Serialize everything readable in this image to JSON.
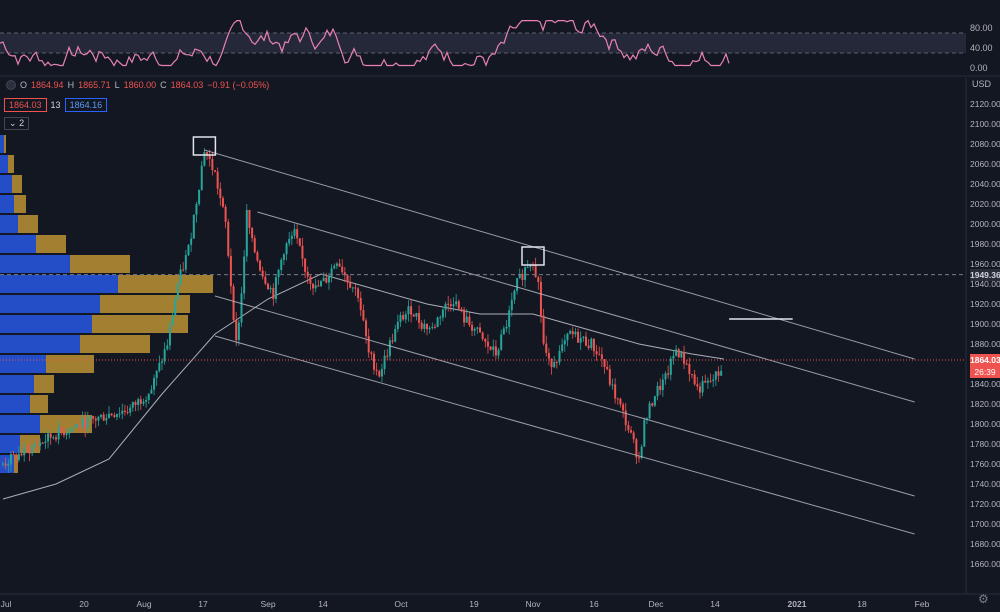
{
  "legend": {
    "open_label": "O",
    "open": "1864.94",
    "high_label": "H",
    "high": "1865.71",
    "low_label": "L",
    "low": "1860.00",
    "close_label": "C",
    "close": "1864.03",
    "change": "−0.91 (−0.05%)",
    "bid": "1864.03",
    "spread": "13",
    "ask": "1864.16",
    "layers": "2"
  },
  "currency": "USD",
  "price_tags": {
    "last": "1864.03",
    "countdown": "26:39",
    "line": "1949.36"
  },
  "colors": {
    "up": "#26a69a",
    "down": "#ef5350",
    "rsi": "#e882b4",
    "vp_up": "#2962ff",
    "vp_down": "#d4a437",
    "channel": "#b2b5be"
  },
  "chart_data": {
    "type": "candlestick",
    "ylim": [
      1650,
      2140
    ],
    "y_ticks": [
      1660,
      1680,
      1700,
      1720,
      1740,
      1760,
      1780,
      1800,
      1820,
      1840,
      1860,
      1880,
      1900,
      1920,
      1940,
      1960,
      1980,
      2000,
      2020,
      2040,
      2060,
      2080,
      2100,
      2120
    ],
    "x_ticks": [
      "Jul",
      "20",
      "Aug",
      "17",
      "Sep",
      "14",
      "Oct",
      "19",
      "Nov",
      "16",
      "Dec",
      "14",
      "2021",
      "18",
      "Feb"
    ],
    "rsi": {
      "ticks": [
        "80.00",
        "40.00",
        "0.00"
      ],
      "upper": 70,
      "lower": 30
    },
    "close_path": [
      [
        0,
        1760
      ],
      [
        5,
        1775
      ],
      [
        10,
        1790
      ],
      [
        15,
        1800
      ],
      [
        20,
        1810
      ],
      [
        24,
        1815
      ],
      [
        28,
        1835
      ],
      [
        31,
        1880
      ],
      [
        33,
        1940
      ],
      [
        35,
        1975
      ],
      [
        37,
        2040
      ],
      [
        38,
        2075
      ],
      [
        40,
        2050
      ],
      [
        42,
        2000
      ],
      [
        43,
        1940
      ],
      [
        44,
        1880
      ],
      [
        45,
        1930
      ],
      [
        46,
        2010
      ],
      [
        47,
        1980
      ],
      [
        49,
        1950
      ],
      [
        51,
        1930
      ],
      [
        53,
        1975
      ],
      [
        55,
        1990
      ],
      [
        57,
        1955
      ],
      [
        59,
        1935
      ],
      [
        61,
        1945
      ],
      [
        63,
        1965
      ],
      [
        65,
        1945
      ],
      [
        67,
        1930
      ],
      [
        69,
        1870
      ],
      [
        71,
        1850
      ],
      [
        73,
        1880
      ],
      [
        75,
        1905
      ],
      [
        77,
        1915
      ],
      [
        79,
        1900
      ],
      [
        81,
        1895
      ],
      [
        83,
        1915
      ],
      [
        85,
        1925
      ],
      [
        87,
        1905
      ],
      [
        89,
        1895
      ],
      [
        91,
        1880
      ],
      [
        93,
        1870
      ],
      [
        95,
        1900
      ],
      [
        97,
        1940
      ],
      [
        99,
        1960
      ],
      [
        100,
        1965
      ],
      [
        101,
        1940
      ],
      [
        102,
        1880
      ],
      [
        103,
        1860
      ],
      [
        105,
        1870
      ],
      [
        107,
        1890
      ],
      [
        109,
        1885
      ],
      [
        111,
        1880
      ],
      [
        113,
        1865
      ],
      [
        115,
        1835
      ],
      [
        117,
        1810
      ],
      [
        119,
        1780
      ],
      [
        120,
        1765
      ],
      [
        121,
        1800
      ],
      [
        123,
        1830
      ],
      [
        125,
        1845
      ],
      [
        127,
        1875
      ],
      [
        129,
        1860
      ],
      [
        131,
        1835
      ],
      [
        133,
        1840
      ],
      [
        135,
        1850
      ],
      [
        136,
        1864
      ]
    ],
    "ma_path": [
      [
        0,
        1725
      ],
      [
        10,
        1740
      ],
      [
        20,
        1765
      ],
      [
        30,
        1830
      ],
      [
        40,
        1890
      ],
      [
        50,
        1925
      ],
      [
        60,
        1950
      ],
      [
        70,
        1935
      ],
      [
        80,
        1920
      ],
      [
        90,
        1910
      ],
      [
        100,
        1910
      ],
      [
        110,
        1895
      ],
      [
        120,
        1880
      ],
      [
        130,
        1870
      ],
      [
        136,
        1865
      ]
    ],
    "channels": [
      {
        "from": [
          38,
          2074
        ],
        "to": [
          172,
          1865
        ]
      },
      {
        "from": [
          48,
          2012
        ],
        "to": [
          172,
          1822
        ]
      },
      {
        "from": [
          40,
          1928
        ],
        "to": [
          172,
          1728
        ]
      },
      {
        "from": [
          40,
          1888
        ],
        "to": [
          172,
          1690
        ]
      }
    ],
    "markers": [
      {
        "x": 38,
        "y": 2075
      },
      {
        "x": 100,
        "y": 1965
      }
    ],
    "horizontal_ray": {
      "from": 137,
      "to": 149,
      "y": 1905
    },
    "last_price": 1864.03,
    "hline": 1949.36,
    "volume_profile": [
      {
        "price": 2080,
        "up": 4,
        "down": 2
      },
      {
        "price": 2060,
        "up": 8,
        "down": 6
      },
      {
        "price": 2040,
        "up": 12,
        "down": 10
      },
      {
        "price": 2020,
        "up": 14,
        "down": 12
      },
      {
        "price": 2000,
        "up": 18,
        "down": 20
      },
      {
        "price": 1980,
        "up": 36,
        "down": 30
      },
      {
        "price": 1960,
        "up": 70,
        "down": 60
      },
      {
        "price": 1940,
        "up": 118,
        "down": 95
      },
      {
        "price": 1920,
        "up": 100,
        "down": 90
      },
      {
        "price": 1900,
        "up": 92,
        "down": 96
      },
      {
        "price": 1880,
        "up": 80,
        "down": 70
      },
      {
        "price": 1860,
        "up": 46,
        "down": 48
      },
      {
        "price": 1840,
        "up": 34,
        "down": 20
      },
      {
        "price": 1820,
        "up": 30,
        "down": 18
      },
      {
        "price": 1800,
        "up": 40,
        "down": 52
      },
      {
        "price": 1780,
        "up": 20,
        "down": 20
      },
      {
        "price": 1760,
        "up": 14,
        "down": 4
      }
    ]
  }
}
